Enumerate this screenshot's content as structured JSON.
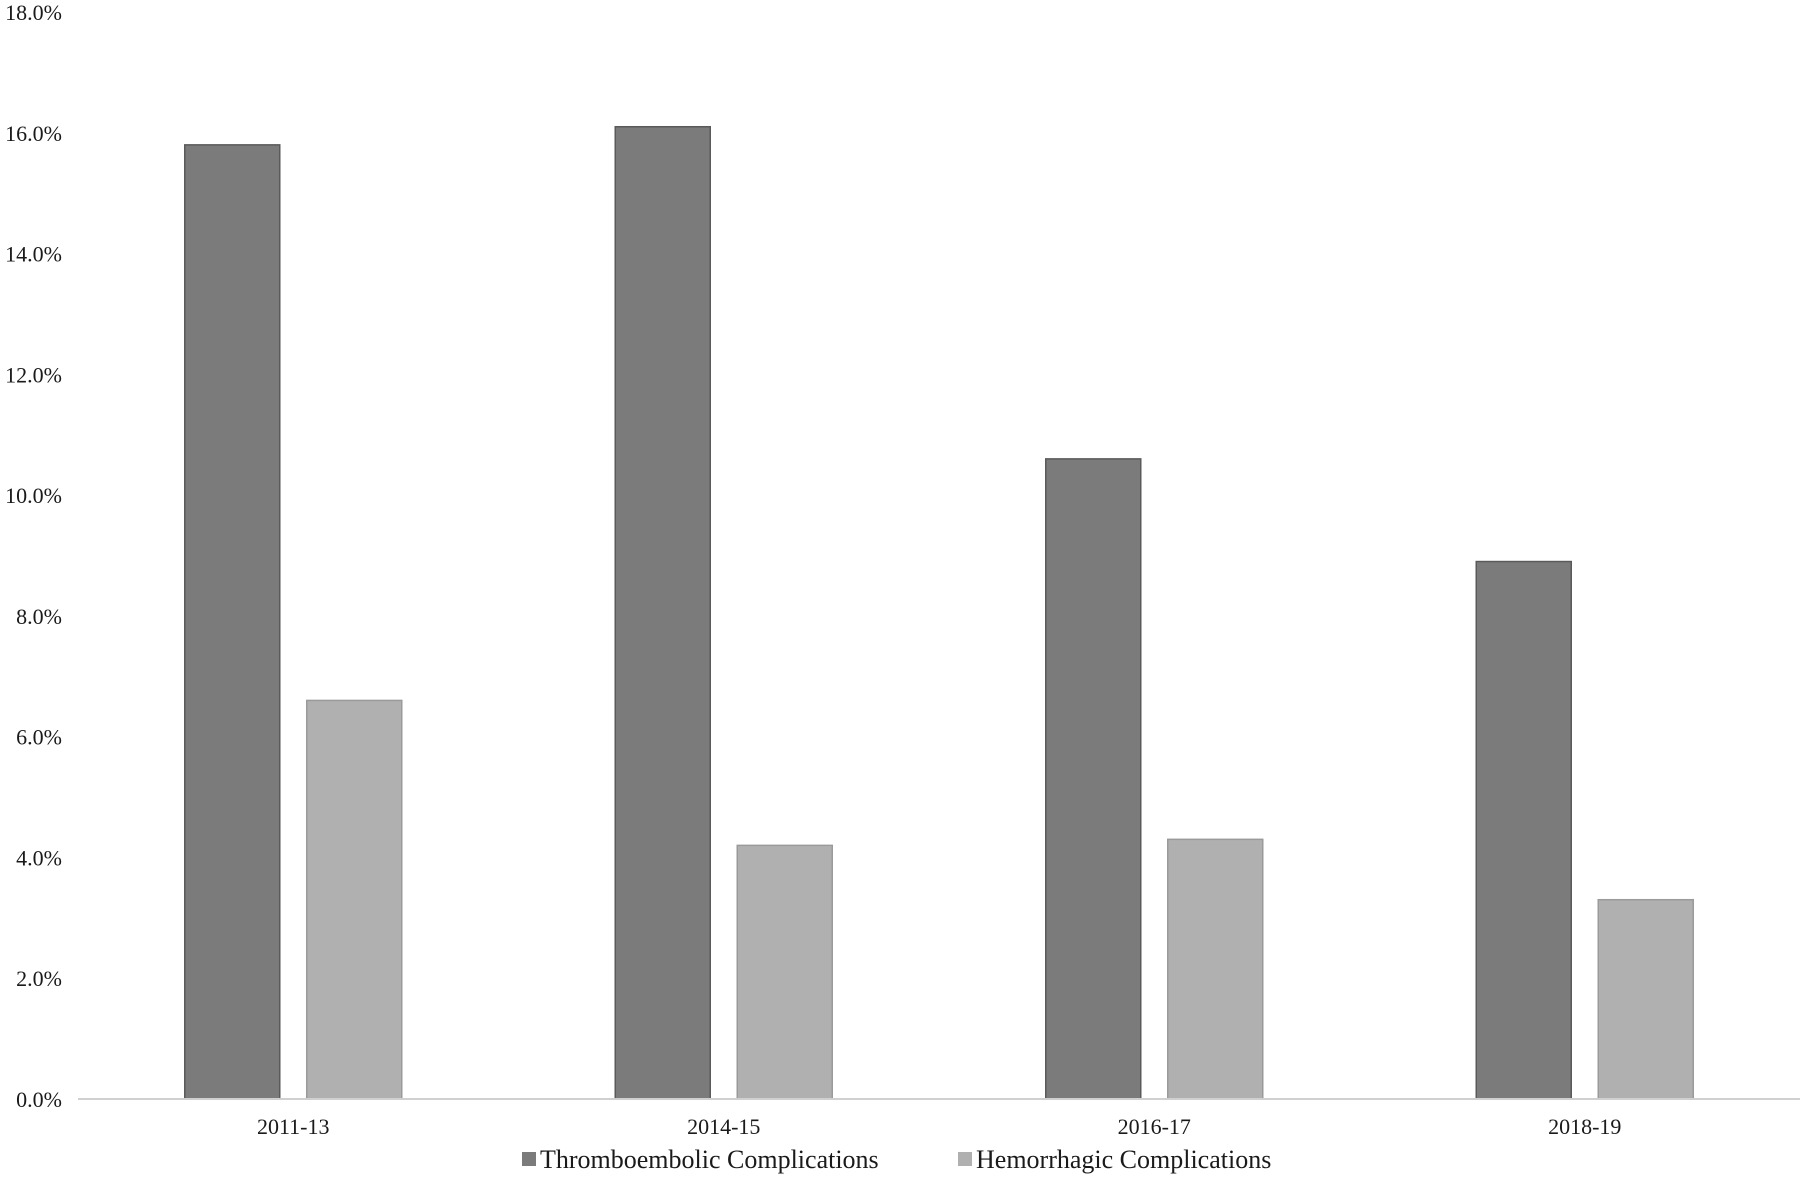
{
  "chart_data": {
    "type": "bar",
    "categories": [
      "2011-13",
      "2014-15",
      "2016-17",
      "2018-19"
    ],
    "series": [
      {
        "name": "Thromboembolic Complications",
        "values": [
          15.8,
          16.1,
          10.6,
          8.9
        ],
        "color": "#7b7b7b"
      },
      {
        "name": "Hemorrhagic Complications",
        "values": [
          6.6,
          4.2,
          4.3,
          3.3
        ],
        "color": "#b0b0b0"
      }
    ],
    "ylim": [
      0,
      18
    ],
    "yticks": [
      0,
      2,
      4,
      6,
      8,
      10,
      12,
      14,
      16,
      18
    ],
    "ytick_labels": [
      "0.0%",
      "2.0%",
      "4.0%",
      "6.0%",
      "8.0%",
      "10.0%",
      "12.0%",
      "14.0%",
      "16.0%",
      "18.0%"
    ],
    "grid": false,
    "legend_position": "bottom"
  }
}
